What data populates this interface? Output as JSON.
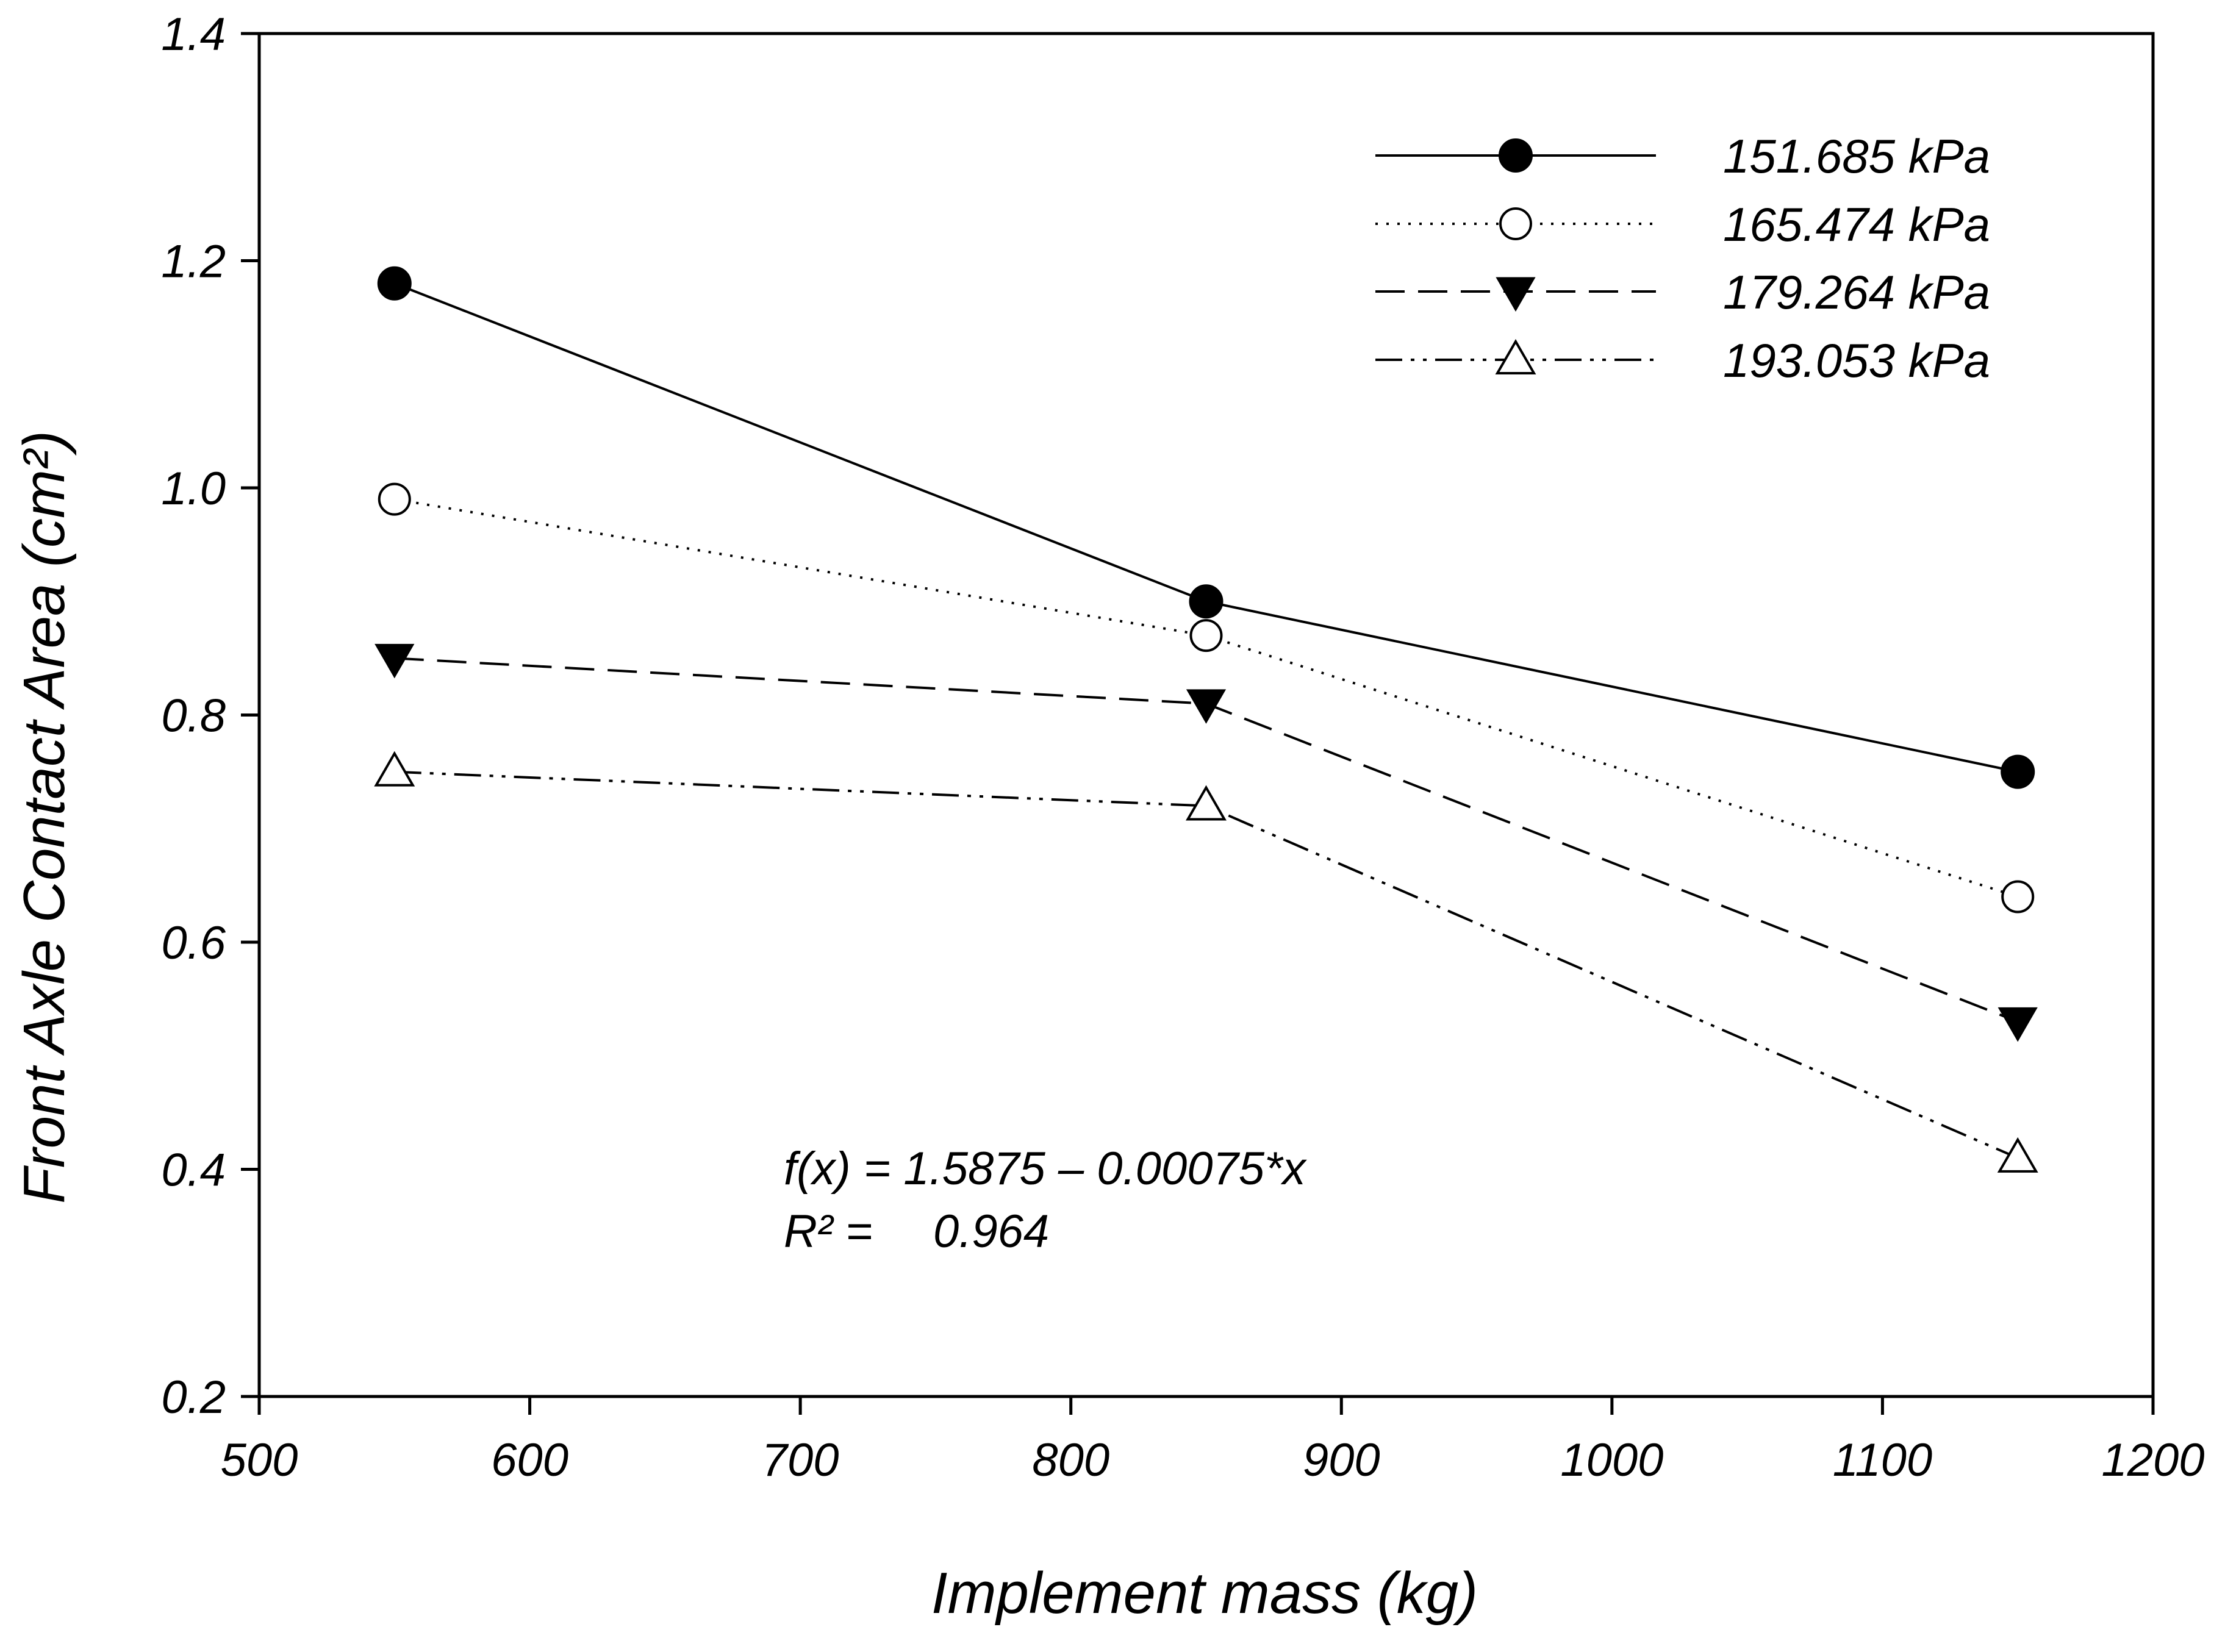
{
  "chart_data": {
    "type": "line",
    "title": "",
    "xlabel": "Implement mass (kg)",
    "ylabel": "Front Axle Contact Area (cm²)",
    "xlim": [
      500,
      1200
    ],
    "ylim": [
      0.2,
      1.4
    ],
    "xticks": [
      500,
      600,
      700,
      800,
      900,
      1000,
      1100,
      1200
    ],
    "yticks": [
      0.2,
      0.4,
      0.6,
      0.8,
      1.0,
      1.2,
      1.4
    ],
    "ytick_labels": [
      "0.2",
      "0.4",
      "0.6",
      "0.8",
      "1.0",
      "1.2",
      "1.4"
    ],
    "x": [
      550,
      850,
      1150
    ],
    "grid": false,
    "legend_position": "top-right",
    "series": [
      {
        "name": "151.685 kPa",
        "values": [
          1.18,
          0.9,
          0.75
        ],
        "marker": "circle-filled",
        "dash": "solid"
      },
      {
        "name": "165.474 kPa",
        "values": [
          0.99,
          0.87,
          0.64
        ],
        "marker": "circle-open",
        "dash": "dotted"
      },
      {
        "name": "179.264 kPa",
        "values": [
          0.85,
          0.81,
          0.53
        ],
        "marker": "triangle-down-filled",
        "dash": "dashed"
      },
      {
        "name": "193.053 kPa",
        "values": [
          0.75,
          0.72,
          0.41
        ],
        "marker": "triangle-up-open",
        "dash": "dash-dot-dot"
      }
    ],
    "annotations": {
      "equation": "f(x) = 1.5875 – 0.00075*x",
      "r2_label": "R² =",
      "r2_value": "0.964"
    }
  }
}
